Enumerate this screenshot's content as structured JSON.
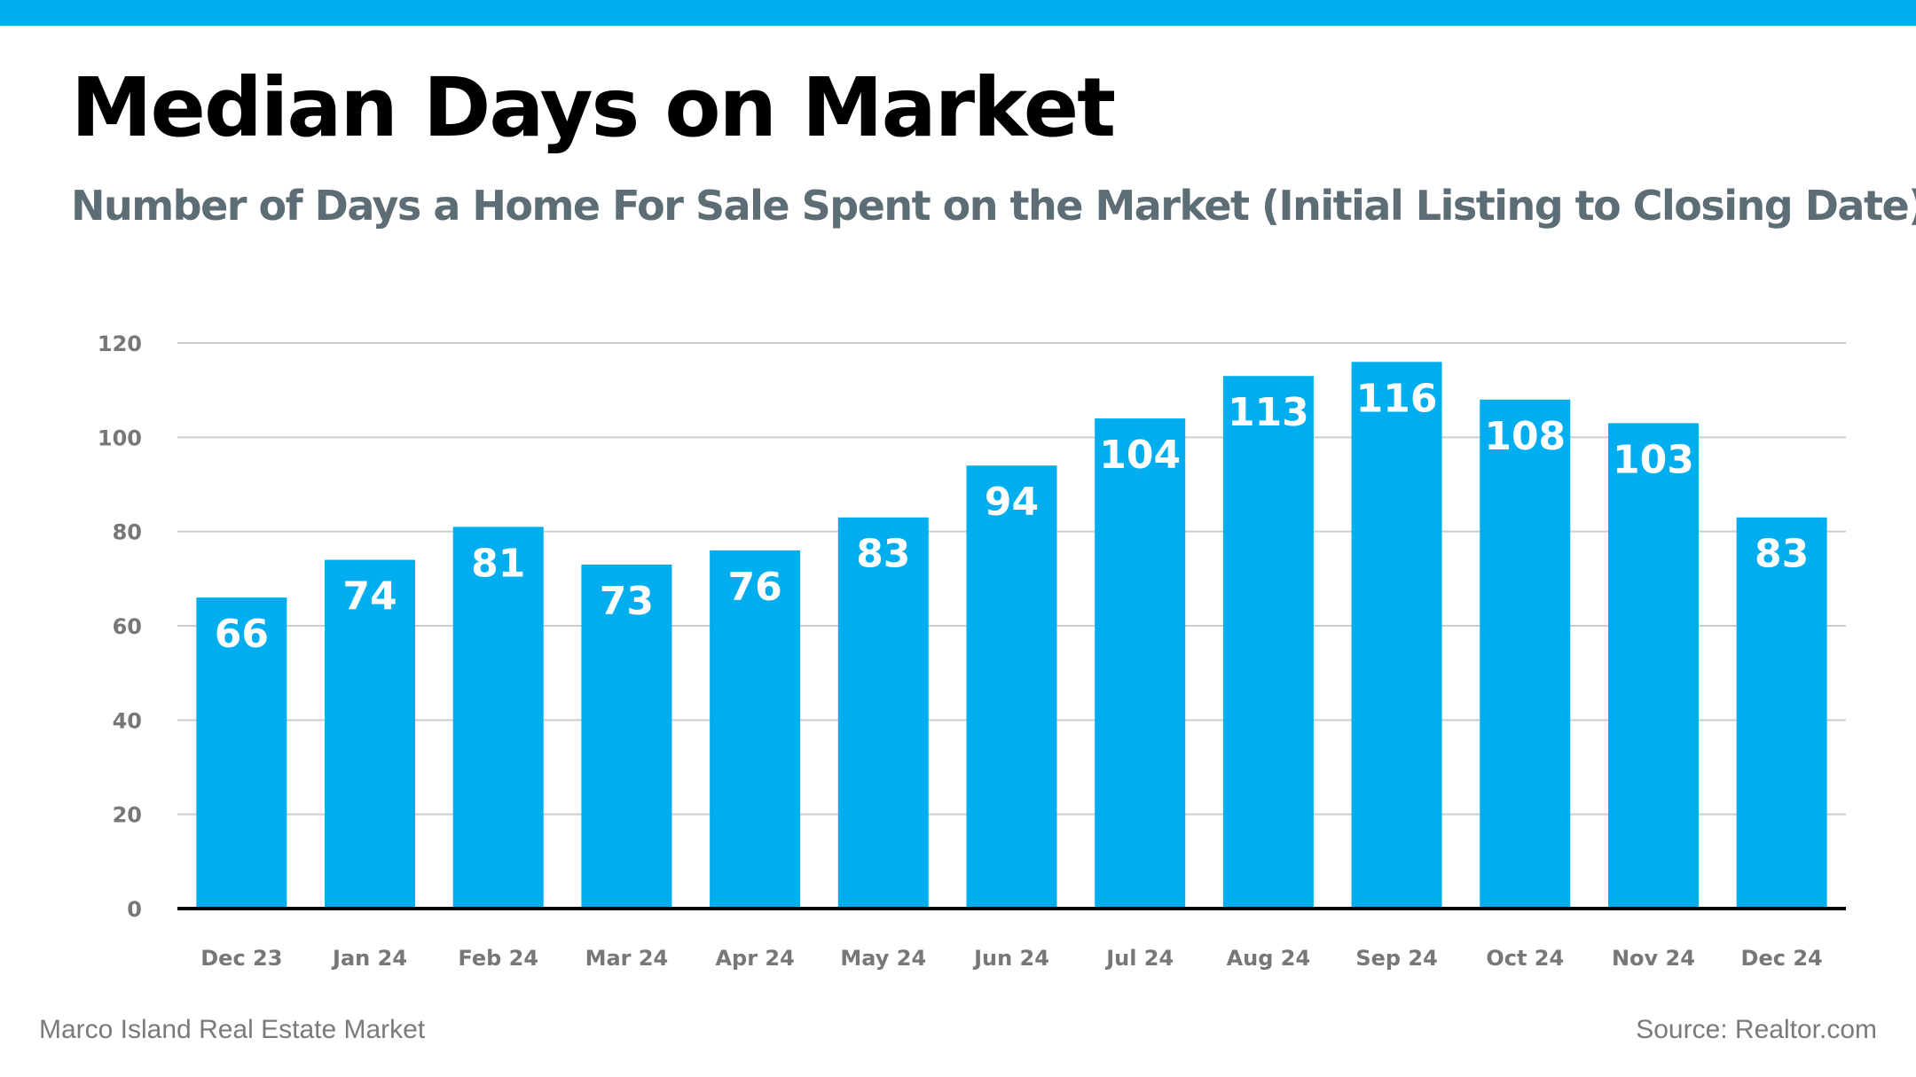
{
  "header": {
    "title": "Median Days on Market",
    "subtitle": "Number of Days a Home For Sale Spent on the Market (Initial Listing to Closing Date)"
  },
  "footer": {
    "left": "Marco Island Real Estate Market",
    "right": "Source: Realtor.com"
  },
  "colors": {
    "accent": "#00aeef",
    "bar": "#00aeef",
    "subtitle": "#5d6d75",
    "grid": "#cccccc",
    "axis": "#000000"
  },
  "chart_data": {
    "type": "bar",
    "title": "Median Days on Market",
    "subtitle": "Number of Days a Home For Sale Spent on the Market (Initial Listing to Closing Date)",
    "categories": [
      "Dec 23",
      "Jan 24",
      "Feb 24",
      "Mar 24",
      "Apr 24",
      "May 24",
      "Jun 24",
      "Jul 24",
      "Aug 24",
      "Sep 24",
      "Oct 24",
      "Nov 24",
      "Dec 24"
    ],
    "values": [
      66,
      74,
      81,
      73,
      76,
      83,
      94,
      104,
      113,
      116,
      108,
      103,
      83
    ],
    "ylim": [
      0,
      120
    ],
    "yticks": [
      0,
      20,
      40,
      60,
      80,
      100,
      120
    ],
    "grid": true,
    "data_labels": true,
    "xlabel": "",
    "ylabel": ""
  }
}
